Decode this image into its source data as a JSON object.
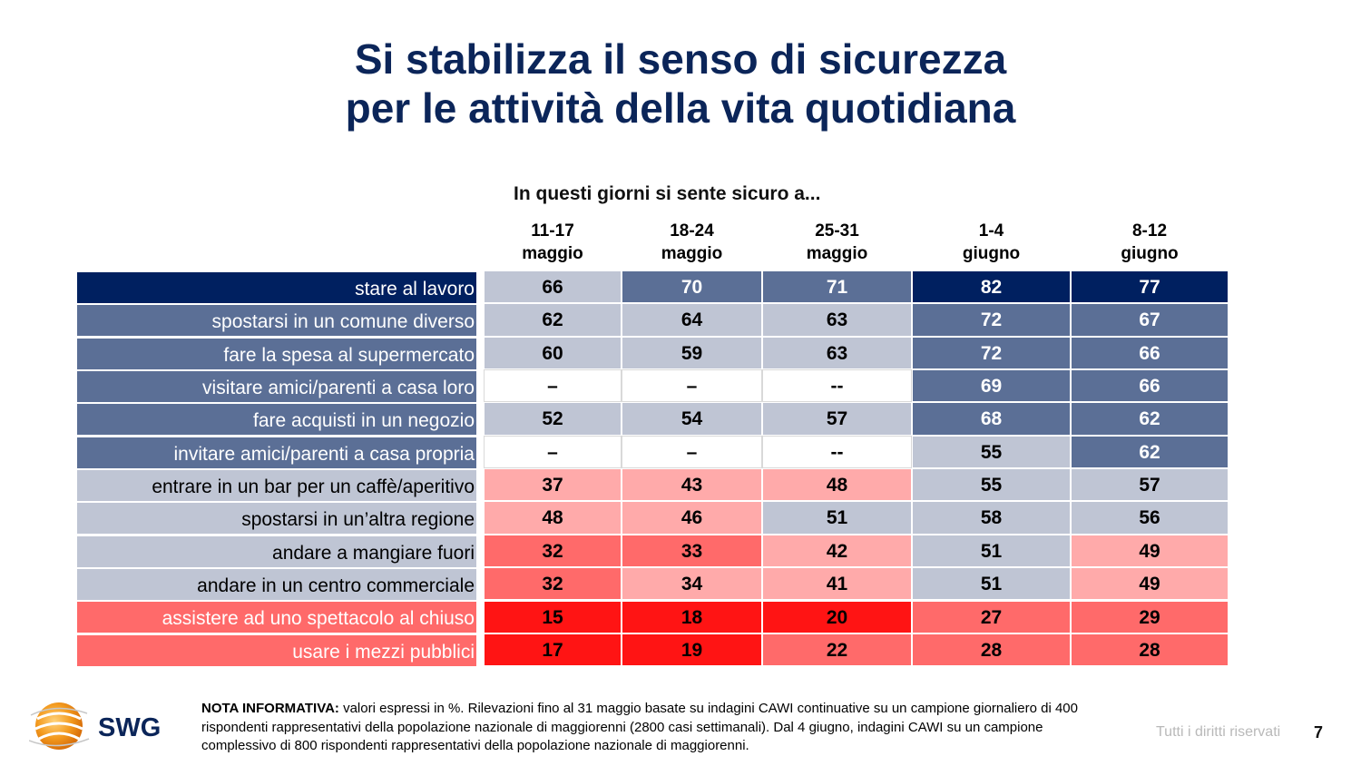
{
  "slide": {
    "title_line1": "Si stabilizza il senso di sicurezza",
    "title_line2": "per le attività della vita quotidiana",
    "page_number": "7",
    "rights": "Tutti i diritti riservati"
  },
  "logo": {
    "text": "SWG"
  },
  "note": {
    "label": "NOTA INFORMATIVA:",
    "text": " valori espressi in %. Rilevazioni fino al 31 maggio basate su indagini CAWI continuative su un campione giornaliero di 400 rispondenti rappresentativi della popolazione nazionale di maggiorenni (2800 casi settimanali). Dal 4 giugno, indagini CAWI su un campione complessivo di 800 rispondenti rappresentativi della popolazione nazionale di maggiorenni."
  },
  "colors": {
    "navy": "#002060",
    "blue_mid": "#5b6f96",
    "blue_light": "#bfc5d4",
    "pink_light": "#ffaaaa",
    "red_mid": "#ff6a6a",
    "red_strong": "#ff1414",
    "blank": "#ffffff"
  },
  "chart_data": {
    "type": "table",
    "title": "In questi giorni si sente sicuro a...",
    "columns": [
      {
        "line1": "11-17",
        "line2": "maggio"
      },
      {
        "line1": "18-24",
        "line2": "maggio"
      },
      {
        "line1": "25-31",
        "line2": "maggio"
      },
      {
        "line1": "1-4",
        "line2": "giugno"
      },
      {
        "line1": "8-12",
        "line2": "giugno"
      }
    ],
    "unit": "%",
    "rows": [
      {
        "label": "stare al lavoro",
        "label_style": "navy",
        "values": [
          "66",
          "70",
          "71",
          "82",
          "77"
        ],
        "styles": [
          "blue_light",
          "blue_mid",
          "blue_mid",
          "navy",
          "navy"
        ]
      },
      {
        "label": "spostarsi in un comune diverso",
        "label_style": "blue_mid",
        "values": [
          "62",
          "64",
          "63",
          "72",
          "67"
        ],
        "styles": [
          "blue_light",
          "blue_light",
          "blue_light",
          "blue_mid",
          "blue_mid"
        ]
      },
      {
        "label": "fare la spesa al supermercato",
        "label_style": "blue_mid",
        "values": [
          "60",
          "59",
          "63",
          "72",
          "66"
        ],
        "styles": [
          "blue_light",
          "blue_light",
          "blue_light",
          "blue_mid",
          "blue_mid"
        ]
      },
      {
        "label": "visitare amici/parenti a casa loro",
        "label_style": "blue_mid",
        "values": [
          "–",
          "–",
          "--",
          "69",
          "66"
        ],
        "styles": [
          "blank",
          "blank",
          "blank",
          "blue_mid",
          "blue_mid"
        ]
      },
      {
        "label": "fare acquisti in un negozio",
        "label_style": "blue_mid",
        "values": [
          "52",
          "54",
          "57",
          "68",
          "62"
        ],
        "styles": [
          "blue_light",
          "blue_light",
          "blue_light",
          "blue_mid",
          "blue_mid"
        ]
      },
      {
        "label": "invitare amici/parenti a casa propria",
        "label_style": "blue_mid",
        "values": [
          "–",
          "–",
          "--",
          "55",
          "62"
        ],
        "styles": [
          "blank",
          "blank",
          "blank",
          "blue_light",
          "blue_mid"
        ]
      },
      {
        "label": "entrare in un bar per un caffè/aperitivo",
        "label_style": "blue_light",
        "values": [
          "37",
          "43",
          "48",
          "55",
          "57"
        ],
        "styles": [
          "pink_light",
          "pink_light",
          "pink_light",
          "blue_light",
          "blue_light"
        ]
      },
      {
        "label": "spostarsi in un’altra regione",
        "label_style": "blue_light",
        "values": [
          "48",
          "46",
          "51",
          "58",
          "56"
        ],
        "styles": [
          "pink_light",
          "pink_light",
          "blue_light",
          "blue_light",
          "blue_light"
        ]
      },
      {
        "label": "andare a mangiare fuori",
        "label_style": "blue_light",
        "values": [
          "32",
          "33",
          "42",
          "51",
          "49"
        ],
        "styles": [
          "red_mid",
          "red_mid",
          "pink_light",
          "blue_light",
          "pink_light"
        ]
      },
      {
        "label": "andare in un centro commerciale",
        "label_style": "blue_light",
        "values": [
          "32",
          "34",
          "41",
          "51",
          "49"
        ],
        "styles": [
          "red_mid",
          "pink_light",
          "pink_light",
          "blue_light",
          "pink_light"
        ]
      },
      {
        "label": "assistere ad uno spettacolo al chiuso",
        "label_style": "red_mid",
        "values": [
          "15",
          "18",
          "20",
          "27",
          "29"
        ],
        "styles": [
          "red_strong",
          "red_strong",
          "red_strong",
          "red_mid",
          "red_mid"
        ]
      },
      {
        "label": "usare i mezzi pubblici",
        "label_style": "red_mid",
        "values": [
          "17",
          "19",
          "22",
          "28",
          "28"
        ],
        "styles": [
          "red_strong",
          "red_strong",
          "red_mid",
          "red_mid",
          "red_mid"
        ]
      }
    ]
  }
}
